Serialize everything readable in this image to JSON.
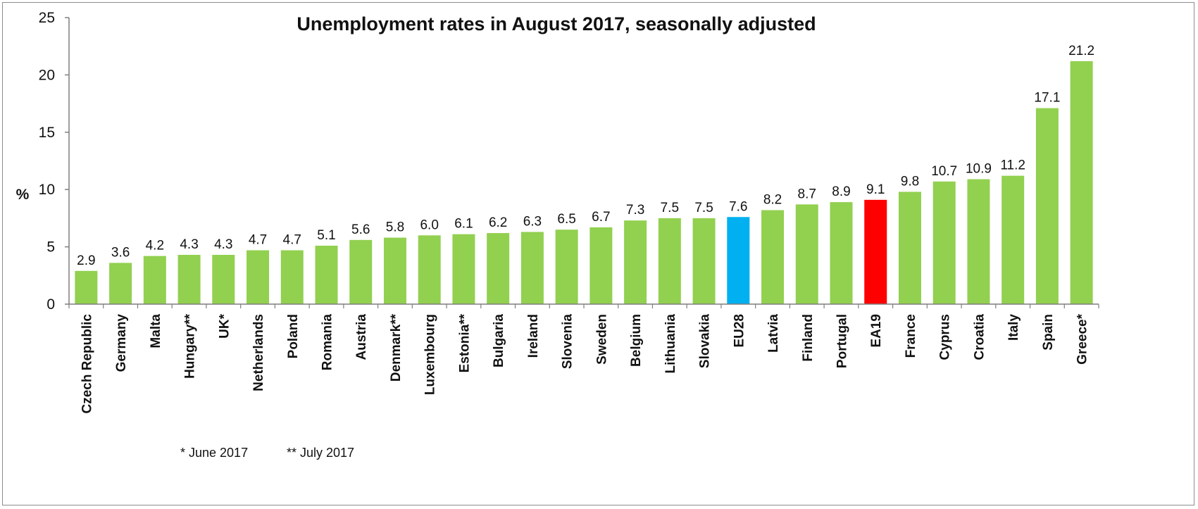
{
  "chart_data": {
    "type": "bar",
    "title": "Unemployment rates in August 2017, seasonally adjusted",
    "ylabel": "%",
    "xlabel": "",
    "ylim": [
      0,
      25
    ],
    "yticks": [
      "0",
      "5",
      "10",
      "15",
      "20",
      "25"
    ],
    "categories": [
      "Czech Republic",
      "Germany",
      "Malta",
      "Hungary**",
      "UK*",
      "Netherlands",
      "Poland",
      "Romania",
      "Austria",
      "Denmark**",
      "Luxembourg",
      "Estonia**",
      "Bulgaria",
      "Ireland",
      "Slovenia",
      "Sweden",
      "Belgium",
      "Lithuania",
      "Slovakia",
      "EU28",
      "Latvia",
      "Finland",
      "Portugal",
      "EA19",
      "France",
      "Cyprus",
      "Croatia",
      "Italy",
      "Spain",
      "Greece*"
    ],
    "values": [
      2.9,
      3.6,
      4.2,
      4.3,
      4.3,
      4.7,
      4.7,
      5.1,
      5.6,
      5.8,
      6.0,
      6.1,
      6.2,
      6.3,
      6.5,
      6.7,
      7.3,
      7.5,
      7.5,
      7.6,
      8.2,
      8.7,
      8.9,
      9.1,
      9.8,
      10.7,
      10.9,
      11.2,
      17.1,
      21.2
    ],
    "value_labels": [
      "2.9",
      "3.6",
      "4.2",
      "4.3",
      "4.3",
      "4.7",
      "4.7",
      "5.1",
      "5.6",
      "5.8",
      "6.0",
      "6.1",
      "6.2",
      "6.3",
      "6.5",
      "6.7",
      "7.3",
      "7.5",
      "7.5",
      "7.6",
      "8.2",
      "8.7",
      "8.9",
      "9.1",
      "9.8",
      "10.7",
      "10.9",
      "11.2",
      "17.1",
      "21.2"
    ],
    "colors": {
      "default": "#92d050",
      "highlight": {
        "EU28": "#00b0f0",
        "EA19": "#ff0000"
      }
    },
    "grid": false,
    "legend": "none",
    "footnotes": [
      "* June 2017",
      "** July 2017"
    ]
  }
}
